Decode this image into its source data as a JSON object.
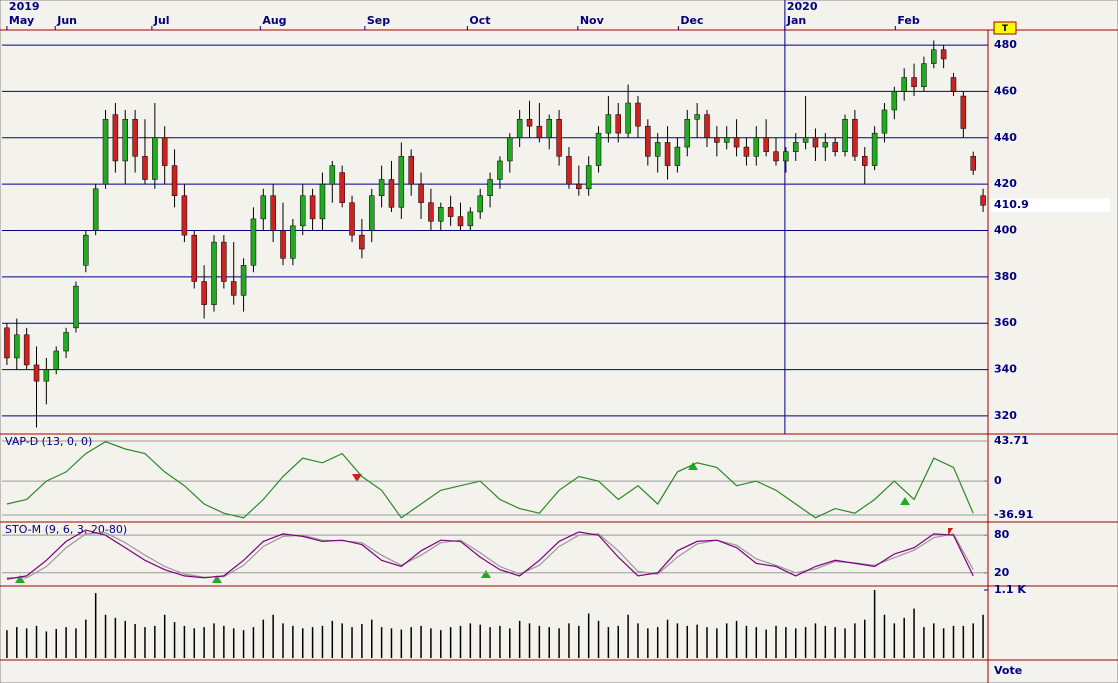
{
  "chart_data": [
    {
      "type": "candlestick",
      "color_up": "#22aa22",
      "color_down": "#cc2222",
      "grid_color": "#000080",
      "xlim": [
        -0.5,
        99.5
      ],
      "xticks": [
        {
          "value": 0,
          "label": "May"
        },
        {
          "value": 4.9,
          "label": "Jun"
        },
        {
          "value": 14.7,
          "label": "Jul"
        },
        {
          "value": 25.7,
          "label": "Aug"
        },
        {
          "value": 36.3,
          "label": "Sep"
        },
        {
          "value": 46.7,
          "label": "Oct"
        },
        {
          "value": 57.9,
          "label": "Nov"
        },
        {
          "value": 68.1,
          "label": "Dec"
        },
        {
          "value": 78.9,
          "label": "Jan"
        },
        {
          "value": 90.1,
          "label": "Feb"
        }
      ],
      "year_ticks": [
        {
          "value": 0,
          "label": "2019"
        },
        {
          "value": 78.9,
          "label": "2020"
        }
      ],
      "marker_label": "T",
      "ylim": [
        312.2,
        486.5
      ],
      "yticks": [
        320,
        340,
        360,
        380,
        400,
        420,
        440,
        460,
        480
      ],
      "candles": [
        [
          358,
          360,
          342,
          345
        ],
        [
          345,
          362,
          340,
          355
        ],
        [
          355,
          358,
          340,
          342
        ],
        [
          342,
          350,
          315,
          335
        ],
        [
          335,
          345,
          325,
          340
        ],
        [
          340,
          350,
          338,
          348
        ],
        [
          348,
          358,
          345,
          356
        ],
        [
          358,
          378,
          356,
          376
        ],
        [
          385,
          400,
          382,
          398
        ],
        [
          400,
          420,
          398,
          418
        ],
        [
          420,
          452,
          418,
          448
        ],
        [
          450,
          455,
          425,
          430
        ],
        [
          430,
          452,
          420,
          448
        ],
        [
          448,
          452,
          425,
          432
        ],
        [
          432,
          448,
          420,
          422
        ],
        [
          422,
          455,
          418,
          440
        ],
        [
          440,
          445,
          420,
          428
        ],
        [
          428,
          435,
          410,
          415
        ],
        [
          415,
          420,
          395,
          398
        ],
        [
          398,
          400,
          375,
          378
        ],
        [
          378,
          385,
          362,
          368
        ],
        [
          368,
          398,
          365,
          395
        ],
        [
          395,
          398,
          375,
          378
        ],
        [
          378,
          395,
          368,
          372
        ],
        [
          372,
          388,
          365,
          385
        ],
        [
          385,
          410,
          382,
          405
        ],
        [
          405,
          418,
          400,
          415
        ],
        [
          415,
          420,
          395,
          400
        ],
        [
          400,
          412,
          385,
          388
        ],
        [
          388,
          405,
          385,
          402
        ],
        [
          402,
          420,
          398,
          415
        ],
        [
          415,
          418,
          400,
          405
        ],
        [
          405,
          425,
          400,
          420
        ],
        [
          420,
          430,
          412,
          428
        ],
        [
          425,
          428,
          410,
          412
        ],
        [
          412,
          415,
          395,
          398
        ],
        [
          398,
          405,
          388,
          392
        ],
        [
          400,
          418,
          395,
          415
        ],
        [
          415,
          428,
          410,
          422
        ],
        [
          422,
          430,
          408,
          410
        ],
        [
          410,
          438,
          405,
          432
        ],
        [
          432,
          435,
          415,
          420
        ],
        [
          420,
          425,
          405,
          412
        ],
        [
          412,
          418,
          400,
          404
        ],
        [
          404,
          412,
          400,
          410
        ],
        [
          410,
          415,
          402,
          406
        ],
        [
          406,
          412,
          400,
          402
        ],
        [
          402,
          410,
          400,
          408
        ],
        [
          408,
          418,
          405,
          415
        ],
        [
          415,
          425,
          410,
          422
        ],
        [
          422,
          432,
          418,
          430
        ],
        [
          430,
          442,
          425,
          440
        ],
        [
          440,
          452,
          436,
          448
        ],
        [
          448,
          456,
          440,
          445
        ],
        [
          445,
          455,
          438,
          440
        ],
        [
          440,
          450,
          435,
          448
        ],
        [
          448,
          452,
          428,
          432
        ],
        [
          432,
          436,
          418,
          420
        ],
        [
          420,
          428,
          415,
          418
        ],
        [
          418,
          432,
          415,
          428
        ],
        [
          428,
          445,
          425,
          442
        ],
        [
          442,
          458,
          438,
          450
        ],
        [
          450,
          455,
          438,
          442
        ],
        [
          442,
          463,
          440,
          455
        ],
        [
          455,
          458,
          440,
          445
        ],
        [
          445,
          448,
          428,
          432
        ],
        [
          432,
          442,
          425,
          438
        ],
        [
          438,
          445,
          422,
          428
        ],
        [
          428,
          440,
          425,
          436
        ],
        [
          436,
          452,
          432,
          448
        ],
        [
          448,
          455,
          440,
          450
        ],
        [
          450,
          452,
          436,
          440
        ],
        [
          440,
          445,
          432,
          438
        ],
        [
          438,
          445,
          435,
          440
        ],
        [
          440,
          448,
          432,
          436
        ],
        [
          436,
          440,
          428,
          432
        ],
        [
          432,
          445,
          428,
          440
        ],
        [
          440,
          448,
          432,
          434
        ],
        [
          434,
          440,
          428,
          430
        ],
        [
          430,
          436,
          425,
          434
        ],
        [
          434,
          442,
          430,
          438
        ],
        [
          438,
          458,
          435,
          440
        ],
        [
          440,
          444,
          430,
          436
        ],
        [
          436,
          442,
          430,
          438
        ],
        [
          438,
          440,
          432,
          434
        ],
        [
          434,
          450,
          432,
          448
        ],
        [
          448,
          452,
          430,
          432
        ],
        [
          432,
          436,
          420,
          428
        ],
        [
          428,
          445,
          426,
          442
        ],
        [
          442,
          455,
          438,
          452
        ],
        [
          452,
          462,
          448,
          460
        ],
        [
          460,
          470,
          456,
          466
        ],
        [
          466,
          472,
          458,
          462
        ],
        [
          462,
          475,
          460,
          472
        ],
        [
          472,
          482,
          470,
          478
        ],
        [
          478,
          480,
          470,
          474
        ],
        [
          466,
          468,
          458,
          460
        ],
        [
          458,
          460,
          440,
          444
        ],
        [
          432,
          434,
          424,
          426
        ],
        [
          415,
          418,
          408,
          410.9
        ]
      ]
    },
    {
      "type": "line",
      "title": "VAP-D (13, 0, 0)",
      "xlim": [
        -0.25,
        49.75
      ],
      "ylim": [
        -42.4,
        49.2
      ],
      "yticks": [
        {
          "value": 43.71,
          "label": "43.71"
        },
        0,
        {
          "value": -36.91,
          "label": "-36.91"
        }
      ],
      "series": [
        {
          "color": "#2a8a2a",
          "values": [
            -25,
            -20,
            0,
            10,
            30,
            43,
            35,
            30,
            10,
            -5,
            -25,
            -35,
            -40,
            -20,
            5,
            25,
            20,
            30,
            5,
            -10,
            -40,
            -25,
            -10,
            -5,
            0,
            -20,
            -30,
            -35,
            -10,
            5,
            0,
            -20,
            -5,
            -25,
            10,
            20,
            15,
            -5,
            0,
            -10,
            -25,
            -40,
            -30,
            -35,
            -20,
            0,
            -20,
            25,
            15,
            -35
          ]
        }
      ]
    },
    {
      "type": "line",
      "title": "STO-M (9, 6, 3, 20-80)",
      "xlim": [
        -0.25,
        49.75
      ],
      "ylim": [
        0.55,
        97.8
      ],
      "yticks": [
        80,
        20
      ],
      "series": [
        {
          "color": "#800080",
          "values": [
            10,
            15,
            40,
            70,
            88,
            80,
            60,
            40,
            25,
            15,
            12,
            15,
            40,
            70,
            82,
            78,
            70,
            72,
            65,
            40,
            30,
            55,
            72,
            70,
            45,
            25,
            15,
            40,
            70,
            85,
            80,
            45,
            15,
            20,
            55,
            70,
            72,
            60,
            35,
            30,
            15,
            30,
            40,
            35,
            30,
            50,
            60,
            82,
            80,
            15
          ]
        },
        {
          "color": "#999999",
          "values": [
            12,
            12,
            30,
            60,
            82,
            84,
            68,
            48,
            30,
            18,
            13,
            14,
            32,
            62,
            78,
            80,
            72,
            71,
            68,
            48,
            32,
            48,
            68,
            72,
            52,
            30,
            18,
            32,
            62,
            80,
            82,
            55,
            22,
            18,
            45,
            66,
            72,
            64,
            42,
            32,
            20,
            26,
            38,
            36,
            32,
            44,
            56,
            76,
            82,
            25
          ]
        }
      ]
    },
    {
      "type": "bar",
      "color": "#000000",
      "xlim": [
        -0.5,
        99.5
      ],
      "ylim": [
        0,
        1100
      ],
      "yticks": [
        {
          "value": 1100,
          "label": "1.1 K"
        }
      ],
      "values": [
        450,
        500,
        480,
        520,
        430,
        470,
        500,
        480,
        620,
        1050,
        700,
        650,
        600,
        550,
        500,
        520,
        700,
        580,
        520,
        480,
        500,
        560,
        520,
        480,
        450,
        500,
        620,
        700,
        560,
        520,
        480,
        500,
        520,
        600,
        560,
        500,
        550,
        620,
        500,
        480,
        460,
        500,
        520,
        480,
        450,
        500,
        520,
        560,
        540,
        500,
        520,
        480,
        600,
        560,
        520,
        500,
        480,
        560,
        520,
        720,
        600,
        500,
        520,
        700,
        560,
        480,
        500,
        620,
        560,
        520,
        540,
        500,
        480,
        560,
        600,
        520,
        500,
        460,
        520,
        500,
        480,
        500,
        560,
        520,
        500,
        480,
        560,
        620,
        1100,
        700,
        560,
        650,
        800,
        500,
        560,
        480,
        520,
        520,
        560,
        700
      ]
    }
  ],
  "footer": {
    "label": "Vote"
  }
}
